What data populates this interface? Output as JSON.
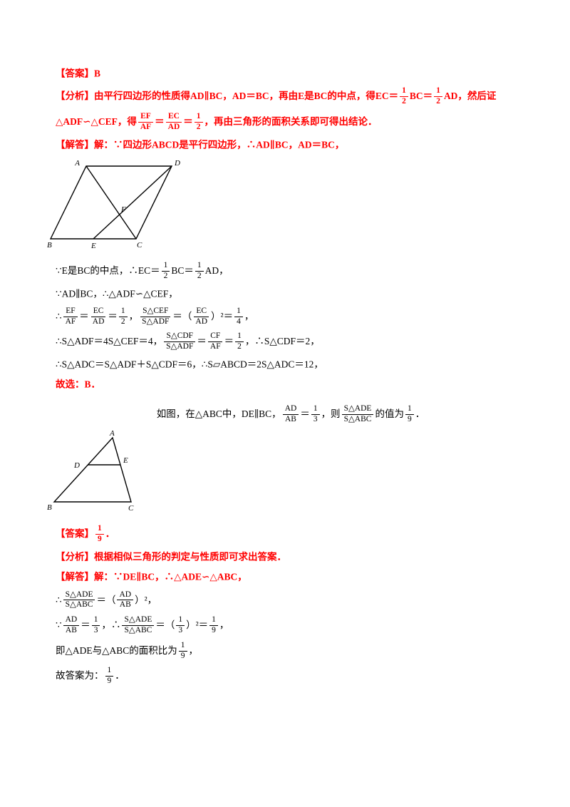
{
  "colors": {
    "accent_red": "#ff0000",
    "text_black": "#000000",
    "background": "#ffffff"
  },
  "problem1": {
    "top": [
      {
        "name": "answer-line-1",
        "color": "red",
        "segments": [
          {
            "t": "text",
            "v": "【答案】B"
          }
        ]
      },
      {
        "name": "analysis-line-1a",
        "color": "red",
        "segments": [
          {
            "t": "text",
            "v": "【分析】由平行四边形的性质得AD∥BC，AD＝BC，再由E是BC的中点，得EC＝"
          },
          {
            "t": "frac",
            "num": "1",
            "den": "2"
          },
          {
            "t": "text",
            "v": "BC＝"
          },
          {
            "t": "frac",
            "num": "1",
            "den": "2"
          },
          {
            "t": "text",
            "v": "AD，然后证"
          }
        ]
      },
      {
        "name": "analysis-line-1b",
        "color": "red",
        "segments": [
          {
            "t": "text",
            "v": "△ADF∽△CEF，得"
          },
          {
            "t": "frac",
            "num": "EF",
            "den": "AF"
          },
          {
            "t": "text",
            "v": "＝"
          },
          {
            "t": "frac",
            "num": "EC",
            "den": "AD"
          },
          {
            "t": "text",
            "v": "＝"
          },
          {
            "t": "frac",
            "num": "1",
            "den": "2"
          },
          {
            "t": "text",
            "v": "，再由三角形的面积关系即可得出结论．"
          }
        ]
      },
      {
        "name": "solution-head-1",
        "color": "red",
        "segments": [
          {
            "t": "text",
            "v": "【解答】解：∵四边形ABCD是平行四边形，∴AD∥BC，AD＝BC，"
          }
        ]
      }
    ],
    "figure": {
      "labels": {
        "A": "A",
        "B": "B",
        "C": "C",
        "D": "D",
        "E": "E",
        "F": "F"
      }
    },
    "work": [
      {
        "name": "work-line-1",
        "color": "black",
        "segments": [
          {
            "t": "text",
            "v": "∵E是BC的中点，∴EC＝"
          },
          {
            "t": "frac",
            "num": "1",
            "den": "2"
          },
          {
            "t": "text",
            "v": "BC＝"
          },
          {
            "t": "frac",
            "num": "1",
            "den": "2"
          },
          {
            "t": "text",
            "v": "AD，"
          }
        ]
      },
      {
        "name": "work-line-2",
        "color": "black",
        "segments": [
          {
            "t": "text",
            "v": "∵AD∥BC，∴△ADF∽△CEF，"
          }
        ]
      },
      {
        "name": "work-line-3",
        "color": "black",
        "segments": [
          {
            "t": "text",
            "v": "∴"
          },
          {
            "t": "frac",
            "num": "EF",
            "den": "AF"
          },
          {
            "t": "text",
            "v": "＝"
          },
          {
            "t": "frac",
            "num": "EC",
            "den": "AD"
          },
          {
            "t": "text",
            "v": "＝"
          },
          {
            "t": "frac",
            "num": "1",
            "den": "2"
          },
          {
            "t": "text",
            "v": "，"
          },
          {
            "t": "frac",
            "num": "S△CEF",
            "den": "S△ADF"
          },
          {
            "t": "text",
            "v": "＝（"
          },
          {
            "t": "frac",
            "num": "EC",
            "den": "AD"
          },
          {
            "t": "text",
            "v": "）²＝"
          },
          {
            "t": "frac",
            "num": "1",
            "den": "4"
          },
          {
            "t": "text",
            "v": "，"
          }
        ]
      },
      {
        "name": "work-line-4",
        "color": "black",
        "segments": [
          {
            "t": "text",
            "v": "∴S△ADF＝4S△CEF＝4，"
          },
          {
            "t": "frac",
            "num": "S△CDF",
            "den": "S△ADF"
          },
          {
            "t": "text",
            "v": "＝"
          },
          {
            "t": "frac",
            "num": "CF",
            "den": "AF"
          },
          {
            "t": "text",
            "v": "＝"
          },
          {
            "t": "frac",
            "num": "1",
            "den": "2"
          },
          {
            "t": "text",
            "v": "，∴S△CDF＝2，"
          }
        ]
      },
      {
        "name": "work-line-5",
        "color": "black",
        "segments": [
          {
            "t": "text",
            "v": "∴S△ADC＝S△ADF＋S△CDF＝6，∴S▱ABCD＝2S△ADC＝12，"
          }
        ]
      },
      {
        "name": "choose-line",
        "color": "red",
        "segments": [
          {
            "t": "text",
            "v": "故选：B．"
          }
        ]
      }
    ]
  },
  "problem2": {
    "statement": [
      {
        "name": "statement-line",
        "color": "black",
        "align": "center",
        "segments": [
          {
            "t": "text",
            "v": "如图，在△ABC中，DE∥BC，"
          },
          {
            "t": "frac",
            "num": "AD",
            "den": "AB"
          },
          {
            "t": "text",
            "v": "＝"
          },
          {
            "t": "frac",
            "num": "1",
            "den": "3"
          },
          {
            "t": "text",
            "v": "，则"
          },
          {
            "t": "frac",
            "num": "S△ADE",
            "den": "S△ABC"
          },
          {
            "t": "text",
            "v": "的值为"
          },
          {
            "t": "frac",
            "num": "1",
            "den": "9"
          },
          {
            "t": "text",
            "v": "．"
          }
        ]
      }
    ],
    "figure": {
      "labels": {
        "A": "A",
        "B": "B",
        "C": "C",
        "D": "D",
        "E": "E"
      }
    },
    "work": [
      {
        "name": "answer-line-2",
        "color": "red",
        "segments": [
          {
            "t": "text",
            "v": "【答案】"
          },
          {
            "t": "frac",
            "num": "1",
            "den": "9"
          },
          {
            "t": "text",
            "v": "．"
          }
        ]
      },
      {
        "name": "analysis-line-2",
        "color": "red",
        "segments": [
          {
            "t": "text",
            "v": "【分析】根据相似三角形的判定与性质即可求出答案．"
          }
        ]
      },
      {
        "name": "solution-head-2",
        "color": "red",
        "segments": [
          {
            "t": "text",
            "v": "【解答】解：∵DE∥BC，∴△ADE∽△ABC，"
          }
        ]
      },
      {
        "name": "work2-line-1",
        "color": "black",
        "segments": [
          {
            "t": "text",
            "v": "∴"
          },
          {
            "t": "frac",
            "num": "S△ADE",
            "den": "S△ABC"
          },
          {
            "t": "text",
            "v": "＝（"
          },
          {
            "t": "frac",
            "num": "AD",
            "den": "AB"
          },
          {
            "t": "text",
            "v": "）²，"
          }
        ]
      },
      {
        "name": "work2-line-2",
        "color": "black",
        "segments": [
          {
            "t": "text",
            "v": "∵"
          },
          {
            "t": "frac",
            "num": "AD",
            "den": "AB"
          },
          {
            "t": "text",
            "v": "＝"
          },
          {
            "t": "frac",
            "num": "1",
            "den": "3"
          },
          {
            "t": "text",
            "v": "，∴"
          },
          {
            "t": "frac",
            "num": "S△ADE",
            "den": "S△ABC"
          },
          {
            "t": "text",
            "v": "＝（"
          },
          {
            "t": "frac",
            "num": "1",
            "den": "3"
          },
          {
            "t": "text",
            "v": "）²＝"
          },
          {
            "t": "frac",
            "num": "1",
            "den": "9"
          },
          {
            "t": "text",
            "v": "，"
          }
        ]
      },
      {
        "name": "work2-line-3",
        "color": "black",
        "segments": [
          {
            "t": "text",
            "v": "即△ADE与△ABC的面积比为"
          },
          {
            "t": "frac",
            "num": "1",
            "den": "9"
          },
          {
            "t": "text",
            "v": "，"
          }
        ]
      },
      {
        "name": "work2-line-4",
        "color": "black",
        "segments": [
          {
            "t": "text",
            "v": "故答案为："
          },
          {
            "t": "frac",
            "num": "1",
            "den": "9"
          },
          {
            "t": "text",
            "v": "．"
          }
        ]
      }
    ]
  }
}
